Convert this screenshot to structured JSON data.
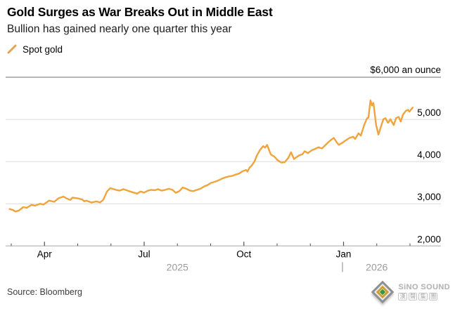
{
  "header": {
    "title": "Gold Surges as War Breaks Out in Middle East",
    "subtitle": "Bullion has gained nearly one quarter this year"
  },
  "legend": {
    "label": "Spot gold"
  },
  "footer": {
    "source": "Source: Bloomberg",
    "logo_name": "SiNO SOUND",
    "logo_cn": "漢聲集團"
  },
  "colors": {
    "line": "#EFA43C",
    "legend_marker": "#E0A54E",
    "grid": "#d9d9d9",
    "top_rule": "#8a8a8a",
    "axis": "#a8a8a8",
    "tick": "#4f4f4f",
    "label_text": "#000000",
    "year_text": "#9b9b9b",
    "source_text": "#3d3d3d"
  },
  "chart_data": {
    "type": "line",
    "title": "Gold Surges as War Breaks Out in Middle East",
    "subtitle": "Bullion has gained nearly one quarter this year",
    "x_unit": "months since 2025-03-01",
    "ylim": [
      2000,
      6000
    ],
    "grid": "horizontal",
    "legend_position": "top-left",
    "y_ticks": [
      2000,
      3000,
      4000,
      5000
    ],
    "y_top_value": 6000,
    "y_top_label": "$6,000 an ounce",
    "x_major_ticks": [
      {
        "m": 1,
        "label": "Apr"
      },
      {
        "m": 4,
        "label": "Jul"
      },
      {
        "m": 7,
        "label": "Oct"
      },
      {
        "m": 10,
        "label": "Jan"
      }
    ],
    "x_minor_ticks": [
      0,
      2,
      3,
      5,
      6,
      8,
      9,
      11,
      12
    ],
    "year_labels": [
      {
        "label": "2025",
        "from": 0,
        "to": 10,
        "divider": false
      },
      {
        "label": "2026",
        "from": 10,
        "to": 12,
        "divider": true
      }
    ],
    "series": [
      {
        "name": "Spot gold",
        "points": [
          [
            -0.05,
            2875
          ],
          [
            0.05,
            2850
          ],
          [
            0.13,
            2815
          ],
          [
            0.23,
            2840
          ],
          [
            0.36,
            2920
          ],
          [
            0.47,
            2905
          ],
          [
            0.61,
            2975
          ],
          [
            0.72,
            2955
          ],
          [
            0.87,
            3000
          ],
          [
            0.97,
            2980
          ],
          [
            1.14,
            3075
          ],
          [
            1.29,
            3045
          ],
          [
            1.42,
            3130
          ],
          [
            1.57,
            3170
          ],
          [
            1.69,
            3115
          ],
          [
            1.78,
            3090
          ],
          [
            1.84,
            3145
          ],
          [
            1.99,
            3130
          ],
          [
            2.14,
            3100
          ],
          [
            2.2,
            3055
          ],
          [
            2.26,
            3075
          ],
          [
            2.41,
            3030
          ],
          [
            2.56,
            3055
          ],
          [
            2.67,
            3030
          ],
          [
            2.77,
            3095
          ],
          [
            2.88,
            3290
          ],
          [
            2.98,
            3370
          ],
          [
            3.09,
            3345
          ],
          [
            3.15,
            3330
          ],
          [
            3.26,
            3310
          ],
          [
            3.37,
            3345
          ],
          [
            3.47,
            3320
          ],
          [
            3.58,
            3290
          ],
          [
            3.68,
            3265
          ],
          [
            3.79,
            3240
          ],
          [
            3.89,
            3290
          ],
          [
            4.0,
            3265
          ],
          [
            4.11,
            3310
          ],
          [
            4.21,
            3330
          ],
          [
            4.32,
            3320
          ],
          [
            4.42,
            3345
          ],
          [
            4.53,
            3310
          ],
          [
            4.63,
            3330
          ],
          [
            4.74,
            3355
          ],
          [
            4.85,
            3330
          ],
          [
            4.95,
            3260
          ],
          [
            5.06,
            3300
          ],
          [
            5.16,
            3385
          ],
          [
            5.27,
            3355
          ],
          [
            5.38,
            3310
          ],
          [
            5.48,
            3300
          ],
          [
            5.59,
            3330
          ],
          [
            5.69,
            3355
          ],
          [
            5.8,
            3410
          ],
          [
            5.9,
            3440
          ],
          [
            6.01,
            3495
          ],
          [
            6.12,
            3520
          ],
          [
            6.22,
            3550
          ],
          [
            6.33,
            3590
          ],
          [
            6.43,
            3620
          ],
          [
            6.54,
            3645
          ],
          [
            6.65,
            3660
          ],
          [
            6.75,
            3690
          ],
          [
            6.86,
            3715
          ],
          [
            6.96,
            3770
          ],
          [
            7.07,
            3800
          ],
          [
            7.11,
            3760
          ],
          [
            7.17,
            3855
          ],
          [
            7.24,
            3910
          ],
          [
            7.32,
            4000
          ],
          [
            7.39,
            4140
          ],
          [
            7.49,
            4280
          ],
          [
            7.58,
            4365
          ],
          [
            7.64,
            4330
          ],
          [
            7.7,
            4395
          ],
          [
            7.81,
            4170
          ],
          [
            7.92,
            4115
          ],
          [
            8.02,
            4030
          ],
          [
            8.13,
            3975
          ],
          [
            8.23,
            3985
          ],
          [
            8.34,
            4090
          ],
          [
            8.42,
            4220
          ],
          [
            8.51,
            4060
          ],
          [
            8.66,
            4145
          ],
          [
            8.76,
            4170
          ],
          [
            8.83,
            4245
          ],
          [
            8.93,
            4200
          ],
          [
            9.04,
            4265
          ],
          [
            9.14,
            4300
          ],
          [
            9.25,
            4340
          ],
          [
            9.35,
            4310
          ],
          [
            9.46,
            4395
          ],
          [
            9.57,
            4480
          ],
          [
            9.65,
            4530
          ],
          [
            9.71,
            4560
          ],
          [
            9.8,
            4450
          ],
          [
            9.86,
            4395
          ],
          [
            9.97,
            4450
          ],
          [
            10.07,
            4505
          ],
          [
            10.18,
            4560
          ],
          [
            10.29,
            4590
          ],
          [
            10.35,
            4535
          ],
          [
            10.45,
            4670
          ],
          [
            10.52,
            4615
          ],
          [
            10.62,
            4865
          ],
          [
            10.71,
            5030
          ],
          [
            10.75,
            5040
          ],
          [
            10.81,
            5450
          ],
          [
            10.86,
            5330
          ],
          [
            10.9,
            5390
          ],
          [
            10.98,
            4870
          ],
          [
            11.05,
            4640
          ],
          [
            11.13,
            4840
          ],
          [
            11.2,
            5005
          ],
          [
            11.26,
            5030
          ],
          [
            11.34,
            4920
          ],
          [
            11.41,
            5005
          ],
          [
            11.47,
            4920
          ],
          [
            11.51,
            4865
          ],
          [
            11.58,
            5030
          ],
          [
            11.66,
            5060
          ],
          [
            11.72,
            4950
          ],
          [
            11.79,
            5115
          ],
          [
            11.87,
            5200
          ],
          [
            11.94,
            5225
          ],
          [
            11.98,
            5185
          ],
          [
            12.08,
            5280
          ]
        ]
      }
    ]
  }
}
